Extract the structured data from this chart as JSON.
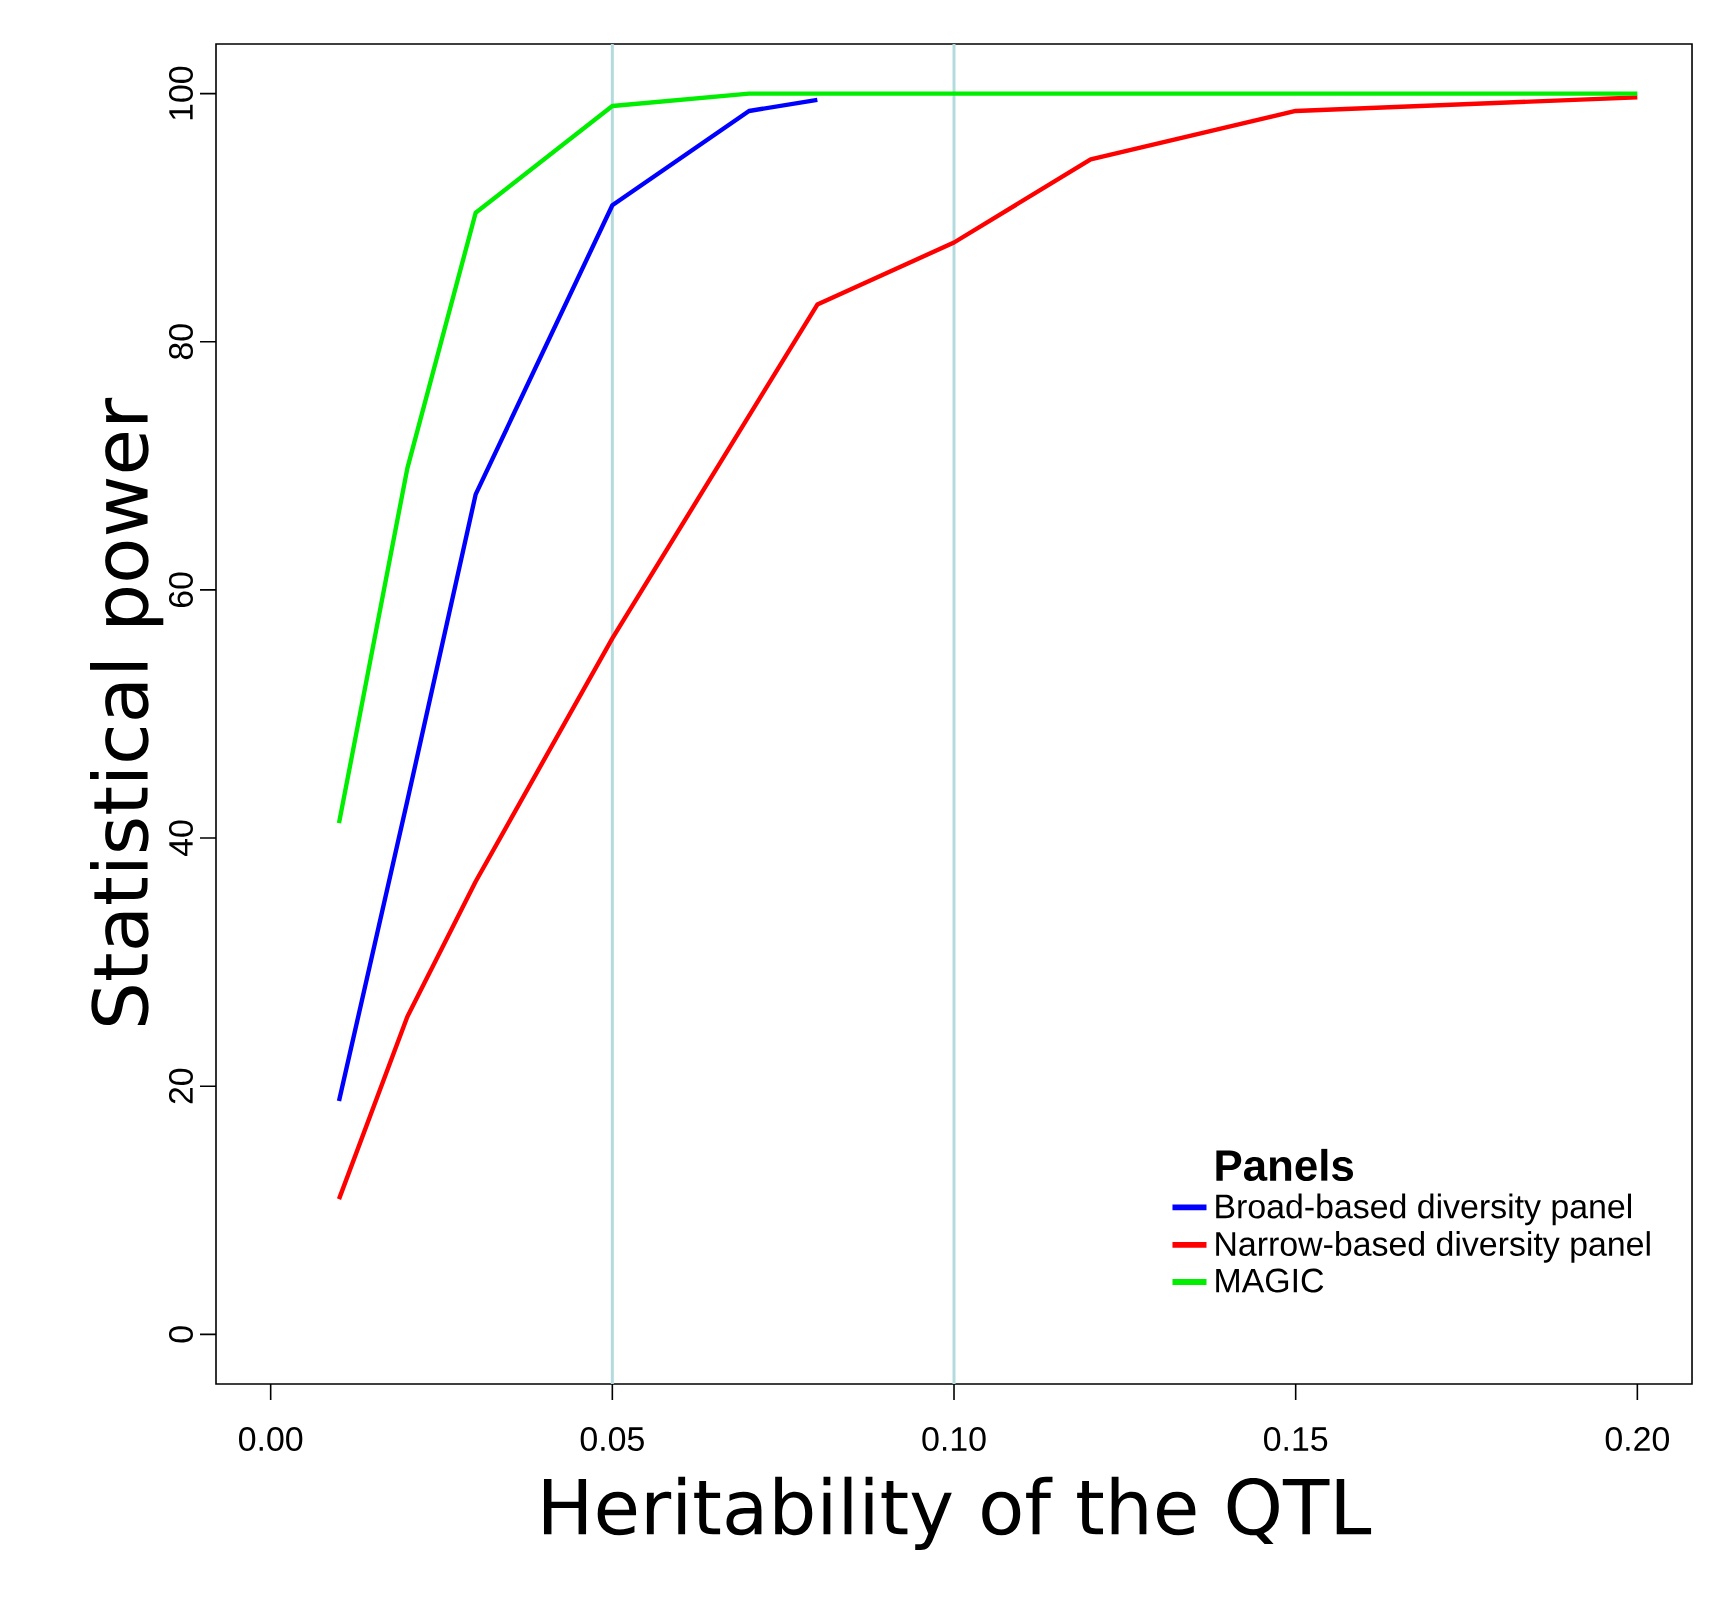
{
  "chart_data": {
    "type": "line",
    "xlabel": "Heritability of the QTL",
    "ylabel": "Statistical power",
    "legend_title": "Panels",
    "xlim": [
      -0.008,
      0.208
    ],
    "ylim": [
      -4,
      104
    ],
    "xticks": [
      {
        "value": 0,
        "label": "0.00"
      },
      {
        "value": 0.05,
        "label": "0.05"
      },
      {
        "value": 0.1,
        "label": "0.10"
      },
      {
        "value": 0.15,
        "label": "0.15"
      },
      {
        "value": 0.2,
        "label": "0.20"
      }
    ],
    "yticks": [
      0,
      20,
      40,
      60,
      80,
      100
    ],
    "legend": "bottom right",
    "grid": false,
    "marker": "none",
    "line_style": "solid",
    "ref_lines": [
      {
        "axis": "x",
        "value": 0.05,
        "color": "#b4dade"
      },
      {
        "axis": "x",
        "value": 0.1,
        "color": "#b4dade"
      }
    ],
    "series": [
      {
        "name": "Broad-based diversity panel",
        "color": "#0000ff",
        "x": [
          0.01,
          0.02,
          0.03,
          0.05,
          0.07,
          0.08
        ],
        "values": [
          18.8,
          43,
          67.7,
          91,
          98.6,
          99.5
        ]
      },
      {
        "name": "Narrow-based diversity panel",
        "color": "#ff0000",
        "x": [
          0.01,
          0.02,
          0.03,
          0.05,
          0.08,
          0.1,
          0.12,
          0.15,
          0.2
        ],
        "values": [
          10.9,
          25.6,
          36.5,
          56.1,
          83,
          88,
          94.7,
          98.6,
          99.7
        ]
      },
      {
        "name": "MAGIC",
        "color": "#00ee00",
        "x": [
          0.01,
          0.02,
          0.03,
          0.05,
          0.07,
          0.1,
          0.12,
          0.15,
          0.2
        ],
        "values": [
          41.2,
          69.8,
          90.4,
          99,
          100,
          100,
          100,
          100,
          100
        ]
      }
    ]
  }
}
